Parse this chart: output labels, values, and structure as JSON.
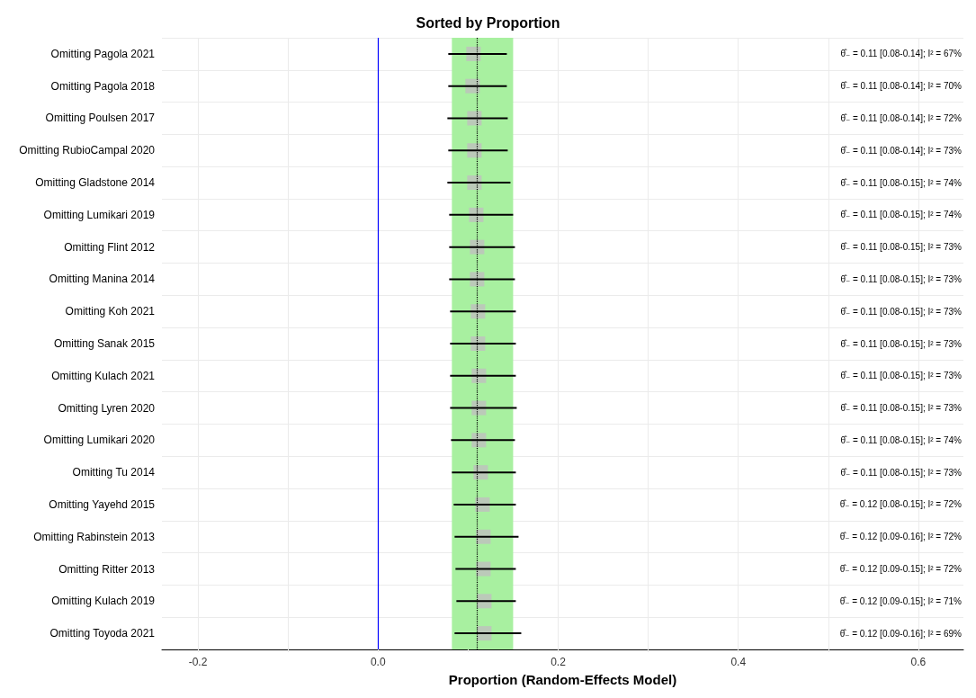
{
  "chart_data": {
    "type": "scatter",
    "orientation": "horizontal",
    "title": "Sorted by Proportion",
    "xlabel": "Proportion (Random-Effects Model)",
    "categories": [
      "Omitting Pagola 2021",
      "Omitting Pagola 2018",
      "Omitting Poulsen 2017",
      "Omitting RubioCampal 2020",
      "Omitting Gladstone 2014",
      "Omitting Lumikari 2019",
      "Omitting Flint 2012",
      "Omitting Manina 2014",
      "Omitting Koh 2021",
      "Omitting Sanak 2015",
      "Omitting Kulach 2021",
      "Omitting Lyren 2020",
      "Omitting Lumikari 2020",
      "Omitting Tu 2014",
      "Omitting Yayehd 2015",
      "Omitting Rabinstein 2013",
      "Omitting Ritter 2013",
      "Omitting Kulach 2019",
      "Omitting Toyoda 2021"
    ],
    "values": [
      0.106,
      0.105,
      0.107,
      0.107,
      0.107,
      0.109,
      0.11,
      0.11,
      0.111,
      0.111,
      0.112,
      0.112,
      0.112,
      0.114,
      0.116,
      0.117,
      0.117,
      0.118,
      0.118
    ],
    "errors": [
      [
        0.078,
        0.143
      ],
      [
        0.078,
        0.143
      ],
      [
        0.077,
        0.144
      ],
      [
        0.078,
        0.144
      ],
      [
        0.077,
        0.147
      ],
      [
        0.079,
        0.15
      ],
      [
        0.079,
        0.152
      ],
      [
        0.079,
        0.152
      ],
      [
        0.08,
        0.153
      ],
      [
        0.08,
        0.153
      ],
      [
        0.08,
        0.153
      ],
      [
        0.08,
        0.154
      ],
      [
        0.081,
        0.152
      ],
      [
        0.082,
        0.153
      ],
      [
        0.084,
        0.153
      ],
      [
        0.085,
        0.156
      ],
      [
        0.086,
        0.153
      ],
      [
        0.087,
        0.153
      ],
      [
        0.085,
        0.159
      ]
    ],
    "color": "#bfbfbf",
    "marker": "square",
    "xlim": [
      -0.24,
      0.65
    ],
    "xticks": [
      -0.2,
      {
        "value": -0.1,
        "label": null
      },
      {
        "value": 0,
        "label": "0.0"
      },
      {
        "value": 0.1,
        "label": null
      },
      0.2,
      {
        "value": 0.3,
        "label": null
      },
      0.4,
      {
        "value": 0.5,
        "label": null
      },
      0.6
    ],
    "grid": true,
    "bands": [
      {
        "axis": "x",
        "from": 0.082,
        "to": 0.15,
        "color": "#a8f0a0"
      }
    ],
    "ref_lines": [
      {
        "axis": "x",
        "value": 0,
        "color": "#0000ff",
        "line_style": "solid"
      },
      {
        "axis": "x",
        "value": 0.111,
        "color": "#000000",
        "line_style": "dotted"
      }
    ],
    "annotations": [
      "θ̂₋ = 0.11 [0.08-0.14]; I² = 67%",
      "θ̂₋ = 0.11 [0.08-0.14]; I² = 70%",
      "θ̂₋ = 0.11 [0.08-0.14]; I² = 72%",
      "θ̂₋ = 0.11 [0.08-0.14]; I² = 73%",
      "θ̂₋ = 0.11 [0.08-0.15]; I² = 74%",
      "θ̂₋ = 0.11 [0.08-0.15]; I² = 74%",
      "θ̂₋ = 0.11 [0.08-0.15]; I² = 73%",
      "θ̂₋ = 0.11 [0.08-0.15]; I² = 73%",
      "θ̂₋ = 0.11 [0.08-0.15]; I² = 73%",
      "θ̂₋ = 0.11 [0.08-0.15]; I² = 73%",
      "θ̂₋ = 0.11 [0.08-0.15]; I² = 73%",
      "θ̂₋ = 0.11 [0.08-0.15]; I² = 73%",
      "θ̂₋ = 0.11 [0.08-0.15]; I² = 74%",
      "θ̂₋ = 0.11 [0.08-0.15]; I² = 73%",
      "θ̂₋ = 0.12 [0.08-0.15]; I² = 72%",
      "θ̂₋ = 0.12 [0.09-0.16]; I² = 72%",
      "θ̂₋ = 0.12 [0.09-0.15]; I² = 72%",
      "θ̂₋ = 0.12 [0.09-0.15]; I² = 71%",
      "θ̂₋ = 0.12 [0.09-0.16]; I² = 69%"
    ]
  }
}
